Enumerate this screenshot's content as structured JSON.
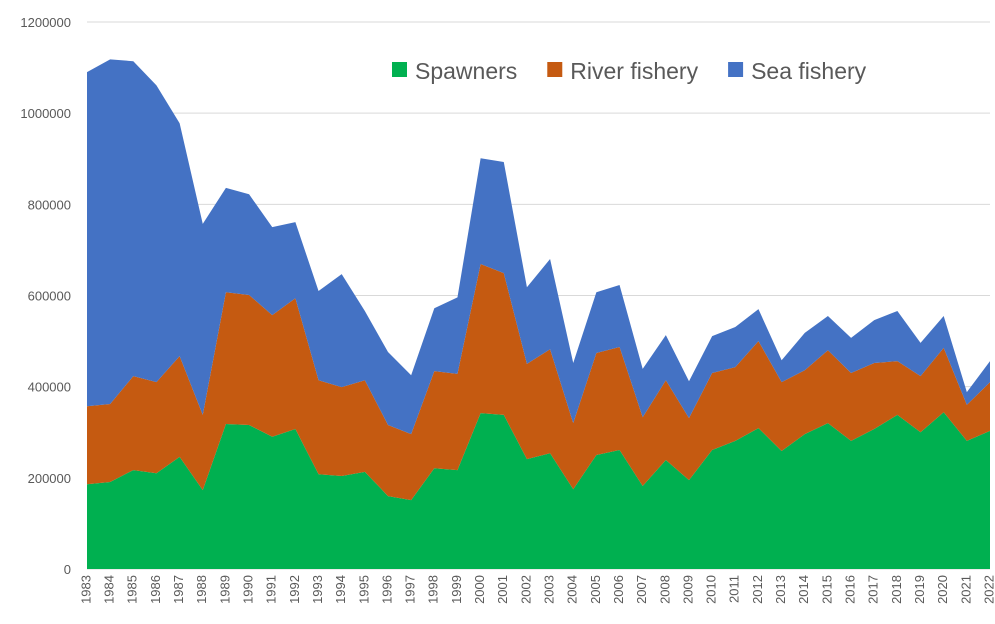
{
  "chart_data": {
    "type": "stacked_area",
    "categories": [
      "1983",
      "1984",
      "1985",
      "1986",
      "1987",
      "1988",
      "1989",
      "1990",
      "1991",
      "1992",
      "1993",
      "1994",
      "1995",
      "1996",
      "1997",
      "1998",
      "1999",
      "2000",
      "2001",
      "2002",
      "2003",
      "2004",
      "2005",
      "2006",
      "2007",
      "2008",
      "2009",
      "2010",
      "2011",
      "2012",
      "2013",
      "2014",
      "2015",
      "2016",
      "2017",
      "2018",
      "2019",
      "2020",
      "2021",
      "2022"
    ],
    "series": [
      {
        "name": "Spawners",
        "color": "#00b050",
        "values": [
          186000,
          191000,
          217000,
          210000,
          246000,
          173000,
          318000,
          316000,
          290000,
          307000,
          208000,
          204000,
          213000,
          160000,
          151000,
          221000,
          217000,
          342000,
          338000,
          241000,
          254000,
          175000,
          250000,
          261000,
          182000,
          239000,
          195000,
          261000,
          281000,
          309000,
          259000,
          296000,
          320000,
          281000,
          307000,
          338000,
          300000,
          344000,
          281000,
          303000
        ]
      },
      {
        "name": "River fishery",
        "color": "#c55a11",
        "values": [
          171000,
          171000,
          206000,
          200000,
          221000,
          165000,
          289000,
          285000,
          267000,
          287000,
          206000,
          195000,
          201000,
          156000,
          145000,
          213000,
          211000,
          327000,
          311000,
          209000,
          228000,
          145000,
          224000,
          226000,
          151000,
          175000,
          136000,
          169000,
          162000,
          191000,
          151000,
          140000,
          160000,
          149000,
          145000,
          118000,
          123000,
          141000,
          79000,
          107000
        ]
      },
      {
        "name": "Sea fishery",
        "color": "#4472c4",
        "values": [
          733000,
          756000,
          691000,
          651000,
          511000,
          419000,
          229000,
          221000,
          193000,
          167000,
          196000,
          248000,
          152000,
          160000,
          129000,
          138000,
          168000,
          232000,
          244000,
          168000,
          198000,
          132000,
          133000,
          136000,
          106000,
          99000,
          81000,
          81000,
          88000,
          70000,
          48000,
          82000,
          75000,
          77000,
          94000,
          110000,
          73000,
          70000,
          28000,
          46000
        ]
      }
    ],
    "ylim": [
      0,
      1200000
    ],
    "yticks": [
      0,
      200000,
      400000,
      600000,
      800000,
      1000000,
      1200000
    ],
    "grid": true,
    "legend": "top-right"
  }
}
